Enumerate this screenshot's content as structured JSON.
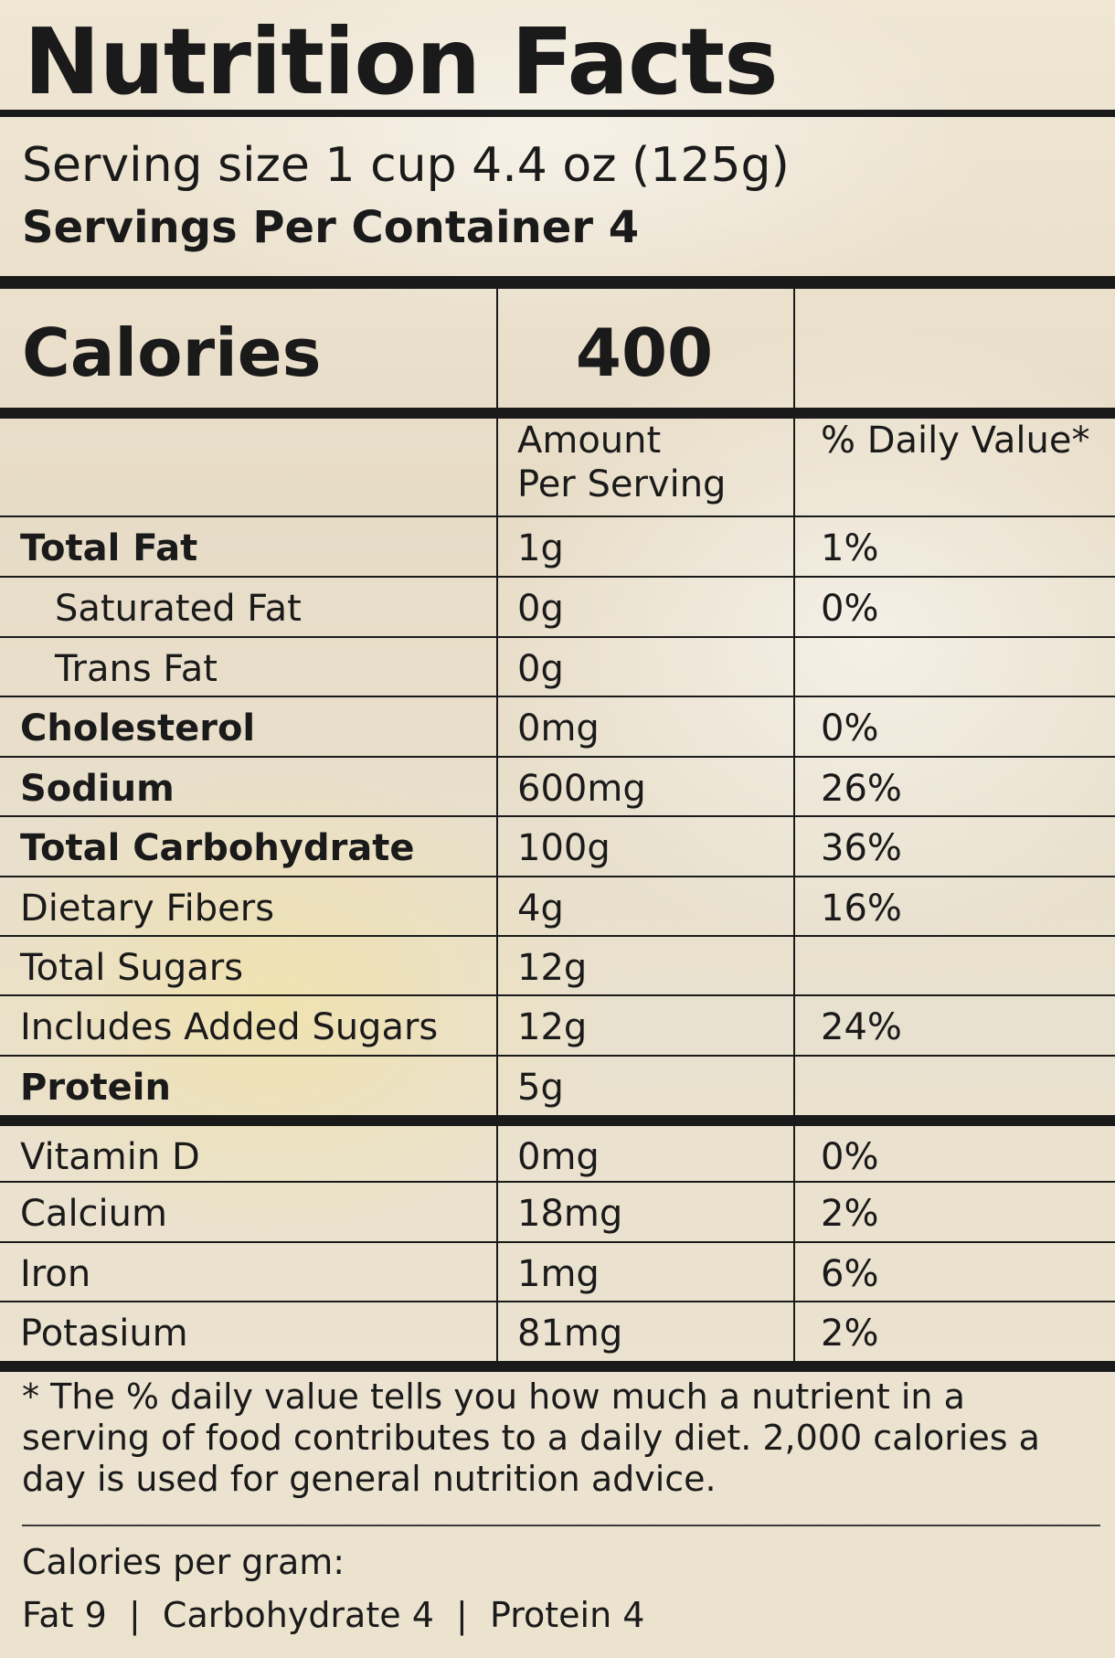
{
  "title": "Nutrition Facts",
  "serving_size": "Serving size 1 cup 4.4 oz (125g)",
  "servings_per_container": "Servings Per Container 4",
  "calories": {
    "label": "Calories",
    "value": "400"
  },
  "headers": {
    "amount_line1": "Amount",
    "amount_line2": "Per Serving",
    "daily_value": "% Daily Value*"
  },
  "nutrients": [
    {
      "name": "Total Fat",
      "amount": "1g",
      "dv": "1%"
    },
    {
      "name": "Saturated Fat",
      "amount": "0g",
      "dv": "0%"
    },
    {
      "name": "Trans Fat",
      "amount": "0g",
      "dv": ""
    },
    {
      "name": "Cholesterol",
      "amount": "0mg",
      "dv": "0%"
    },
    {
      "name": "Sodium",
      "amount": "600mg",
      "dv": "26%"
    },
    {
      "name": "Total Carbohydrate",
      "amount": "100g",
      "dv": "36%"
    },
    {
      "name": "Dietary Fibers",
      "amount": "4g",
      "dv": "16%"
    },
    {
      "name": "Total Sugars",
      "amount": "12g",
      "dv": ""
    },
    {
      "name": "Includes Added Sugars",
      "amount": "12g",
      "dv": "24%"
    },
    {
      "name": "Protein",
      "amount": "5g",
      "dv": ""
    }
  ],
  "vitamins": [
    {
      "name": "Vitamin D",
      "amount": "0mg",
      "dv": "0%"
    },
    {
      "name": "Calcium",
      "amount": "18mg",
      "dv": "2%"
    },
    {
      "name": "Iron",
      "amount": "1mg",
      "dv": "6%"
    },
    {
      "name": "Potasium",
      "amount": "81mg",
      "dv": "2%"
    }
  ],
  "footnote": "* The % daily value tells you how much a nutrient in a serving of food contributes to a daily diet. 2,000 calories a day is used for general nutrition advice.",
  "calories_per_gram": {
    "title": "Calories per gram:",
    "line": "Fat 9  |  Carbohydrate 4  |  Protein 4"
  }
}
